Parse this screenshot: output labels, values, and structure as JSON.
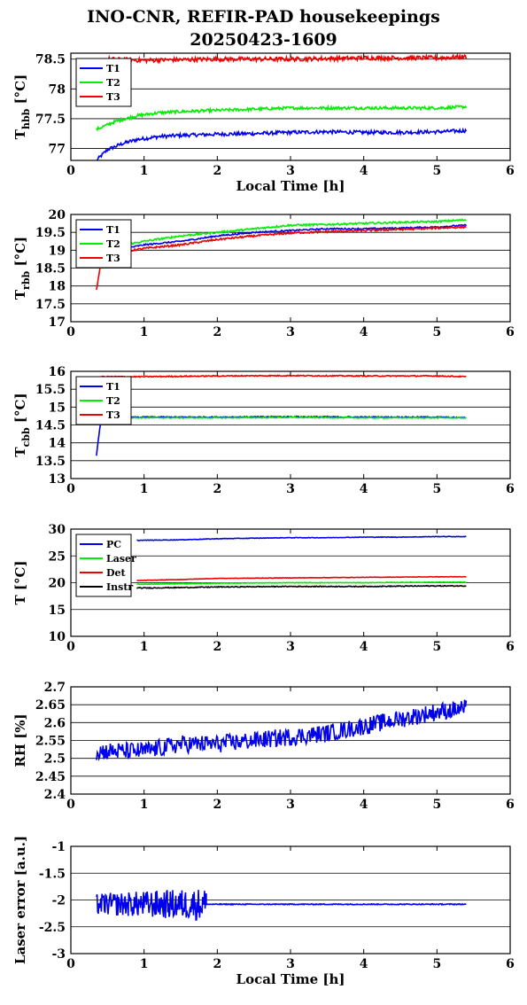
{
  "title": {
    "line1": "INO-CNR, REFIR-PAD housekeepings",
    "line2": "20250423-1609"
  },
  "colors": {
    "blue": "#0000ee",
    "green": "#00ee00",
    "red": "#ee0000",
    "black": "#000000"
  },
  "chart_data": [
    {
      "type": "line",
      "ylabel_main": "T",
      "ylabel_sub": "hbb",
      "ylabel_unit": "[°C]",
      "xlabel": "Local Time [h]",
      "xlim": [
        0,
        6
      ],
      "ylim": [
        76.8,
        78.6
      ],
      "xticks": [
        "0",
        "1",
        "2",
        "3",
        "4",
        "5",
        "6"
      ],
      "yticks": [
        {
          "v": 77,
          "label": "77"
        },
        {
          "v": 77.5,
          "label": "77.5"
        },
        {
          "v": 78,
          "label": "78"
        },
        {
          "v": 78.5,
          "label": "78.5"
        }
      ],
      "grid_y": [
        77,
        77.5,
        78,
        78.5
      ],
      "legend": "top-left",
      "series": [
        {
          "name": "T1",
          "color": "#0000ee",
          "points": [
            [
              0.35,
              76.8
            ],
            [
              0.5,
              76.98
            ],
            [
              0.7,
              77.08
            ],
            [
              0.9,
              77.15
            ],
            [
              1.2,
              77.2
            ],
            [
              1.5,
              77.22
            ],
            [
              2.0,
              77.24
            ],
            [
              2.5,
              77.25
            ],
            [
              3.0,
              77.27
            ],
            [
              3.5,
              77.28
            ],
            [
              4.0,
              77.27
            ],
            [
              4.5,
              77.27
            ],
            [
              5.0,
              77.28
            ],
            [
              5.4,
              77.3
            ]
          ],
          "noise": 0.03
        },
        {
          "name": "T2",
          "color": "#00ee00",
          "points": [
            [
              0.35,
              77.32
            ],
            [
              0.6,
              77.45
            ],
            [
              0.9,
              77.55
            ],
            [
              1.2,
              77.6
            ],
            [
              1.5,
              77.62
            ],
            [
              2.0,
              77.64
            ],
            [
              2.5,
              77.66
            ],
            [
              3.0,
              77.68
            ],
            [
              3.5,
              77.68
            ],
            [
              4.0,
              77.68
            ],
            [
              4.5,
              77.68
            ],
            [
              5.0,
              77.68
            ],
            [
              5.4,
              77.7
            ]
          ],
          "noise": 0.025
        },
        {
          "name": "T3",
          "color": "#ee0000",
          "points": [
            [
              0.5,
              78.5
            ],
            [
              1.0,
              78.48
            ],
            [
              2.0,
              78.5
            ],
            [
              3.0,
              78.5
            ],
            [
              4.0,
              78.52
            ],
            [
              5.0,
              78.52
            ],
            [
              5.4,
              78.54
            ]
          ],
          "noise": 0.035
        }
      ]
    },
    {
      "type": "line",
      "ylabel_main": "T",
      "ylabel_sub": "rbb",
      "ylabel_unit": "[°C]",
      "xlabel": "",
      "xlim": [
        0,
        6
      ],
      "ylim": [
        17,
        20
      ],
      "xticks": [
        "0",
        "1",
        "2",
        "3",
        "4",
        "5",
        "6"
      ],
      "yticks": [
        {
          "v": 17,
          "label": "17"
        },
        {
          "v": 17.5,
          "label": "17.5"
        },
        {
          "v": 18,
          "label": "18"
        },
        {
          "v": 18.5,
          "label": "18.5"
        },
        {
          "v": 19,
          "label": "19"
        },
        {
          "v": 19.5,
          "label": "19.5"
        },
        {
          "v": 20,
          "label": "20"
        }
      ],
      "grid_y": [
        17,
        17.5,
        18,
        18.5,
        19,
        19.5
      ],
      "legend": "top-left",
      "series": [
        {
          "name": "T1",
          "color": "#0000ee",
          "points": [
            [
              0.4,
              18.85
            ],
            [
              0.6,
              19.0
            ],
            [
              1.0,
              19.15
            ],
            [
              1.5,
              19.25
            ],
            [
              2.0,
              19.4
            ],
            [
              2.5,
              19.5
            ],
            [
              3.0,
              19.55
            ],
            [
              3.5,
              19.6
            ],
            [
              4.0,
              19.6
            ],
            [
              4.5,
              19.62
            ],
            [
              5.0,
              19.65
            ],
            [
              5.4,
              19.7
            ]
          ],
          "noise": 0.02
        },
        {
          "name": "T2",
          "color": "#00ee00",
          "points": [
            [
              0.6,
              19.1
            ],
            [
              1.0,
              19.25
            ],
            [
              1.5,
              19.4
            ],
            [
              2.0,
              19.5
            ],
            [
              2.5,
              19.6
            ],
            [
              3.0,
              19.7
            ],
            [
              3.5,
              19.72
            ],
            [
              4.0,
              19.75
            ],
            [
              4.5,
              19.78
            ],
            [
              5.0,
              19.8
            ],
            [
              5.4,
              19.85
            ]
          ],
          "noise": 0.025
        },
        {
          "name": "T3",
          "color": "#ee0000",
          "points": [
            [
              0.35,
              17.9
            ],
            [
              0.38,
              18.3
            ],
            [
              0.42,
              18.7
            ],
            [
              0.5,
              18.85
            ],
            [
              0.7,
              18.95
            ],
            [
              1.0,
              19.05
            ],
            [
              1.5,
              19.15
            ],
            [
              2.0,
              19.3
            ],
            [
              2.5,
              19.4
            ],
            [
              3.0,
              19.48
            ],
            [
              3.5,
              19.52
            ],
            [
              4.0,
              19.55
            ],
            [
              4.5,
              19.58
            ],
            [
              5.0,
              19.62
            ],
            [
              5.4,
              19.65
            ]
          ],
          "noise": 0.025
        }
      ]
    },
    {
      "type": "line",
      "ylabel_main": "T",
      "ylabel_sub": "cbb",
      "ylabel_unit": "[°C]",
      "xlabel": "",
      "xlim": [
        0,
        6
      ],
      "ylim": [
        13,
        16
      ],
      "xticks": [
        "0",
        "1",
        "2",
        "3",
        "4",
        "5",
        "6"
      ],
      "yticks": [
        {
          "v": 13,
          "label": "13"
        },
        {
          "v": 13.5,
          "label": "13.5"
        },
        {
          "v": 14,
          "label": "14"
        },
        {
          "v": 14.5,
          "label": "14.5"
        },
        {
          "v": 15,
          "label": "15"
        },
        {
          "v": 15.5,
          "label": "15.5"
        },
        {
          "v": 16,
          "label": "16"
        }
      ],
      "grid_y": [
        13,
        13.5,
        14,
        14.5,
        15,
        15.5
      ],
      "legend": "top-left",
      "series": [
        {
          "name": "T1",
          "color": "#0000ee",
          "points": [
            [
              0.35,
              13.65
            ],
            [
              0.37,
              14.0
            ],
            [
              0.4,
              14.5
            ],
            [
              0.45,
              14.7
            ],
            [
              1.0,
              14.72
            ],
            [
              2.0,
              14.72
            ],
            [
              3.0,
              14.73
            ],
            [
              4.0,
              14.72
            ],
            [
              5.0,
              14.72
            ],
            [
              5.4,
              14.7
            ]
          ],
          "noise": 0.015
        },
        {
          "name": "T2",
          "color": "#00ee00",
          "points": [
            [
              0.4,
              14.7
            ],
            [
              1.0,
              14.7
            ],
            [
              2.0,
              14.7
            ],
            [
              3.0,
              14.71
            ],
            [
              4.0,
              14.7
            ],
            [
              5.0,
              14.7
            ],
            [
              5.4,
              14.7
            ]
          ],
          "noise": 0.015
        },
        {
          "name": "T3",
          "color": "#ee0000",
          "points": [
            [
              0.4,
              15.85
            ],
            [
              1.0,
              15.85
            ],
            [
              2.0,
              15.87
            ],
            [
              3.0,
              15.88
            ],
            [
              4.0,
              15.87
            ],
            [
              5.0,
              15.87
            ],
            [
              5.4,
              15.85
            ]
          ],
          "noise": 0.015
        }
      ]
    },
    {
      "type": "line",
      "ylabel_main": "T [°C]",
      "ylabel_sub": "",
      "ylabel_unit": "",
      "xlabel": "",
      "xlim": [
        0,
        6
      ],
      "ylim": [
        10,
        30
      ],
      "xticks": [
        "0",
        "1",
        "2",
        "3",
        "4",
        "5",
        "6"
      ],
      "yticks": [
        {
          "v": 10,
          "label": "10"
        },
        {
          "v": 15,
          "label": "15"
        },
        {
          "v": 20,
          "label": "20"
        },
        {
          "v": 25,
          "label": "25"
        },
        {
          "v": 30,
          "label": "30"
        }
      ],
      "grid_y": [
        10,
        15,
        20,
        25
      ],
      "legend": "top-left",
      "series": [
        {
          "name": "PC",
          "color": "#0000ee",
          "points": [
            [
              0.9,
              27.9
            ],
            [
              1.5,
              28.0
            ],
            [
              2.0,
              28.2
            ],
            [
              2.5,
              28.3
            ],
            [
              3.0,
              28.4
            ],
            [
              3.5,
              28.4
            ],
            [
              4.0,
              28.5
            ],
            [
              4.5,
              28.5
            ],
            [
              5.0,
              28.6
            ],
            [
              5.4,
              28.6
            ]
          ],
          "noise": 0.05
        },
        {
          "name": "Laser",
          "color": "#00ee00",
          "points": [
            [
              0.9,
              19.7
            ],
            [
              2.0,
              19.9
            ],
            [
              3.0,
              20.0
            ],
            [
              4.0,
              20.0
            ],
            [
              5.0,
              20.1
            ],
            [
              5.4,
              20.1
            ]
          ],
          "noise": 0.05
        },
        {
          "name": "Det",
          "color": "#ee0000",
          "points": [
            [
              0.9,
              20.4
            ],
            [
              1.5,
              20.6
            ],
            [
              2.0,
              20.8
            ],
            [
              3.0,
              20.9
            ],
            [
              4.0,
              21.0
            ],
            [
              5.0,
              21.1
            ],
            [
              5.4,
              21.1
            ]
          ],
          "noise": 0.04
        },
        {
          "name": "Instr",
          "color": "#000000",
          "points": [
            [
              0.9,
              19.0
            ],
            [
              1.5,
              19.1
            ],
            [
              2.0,
              19.2
            ],
            [
              3.0,
              19.3
            ],
            [
              4.0,
              19.3
            ],
            [
              5.0,
              19.4
            ],
            [
              5.4,
              19.4
            ]
          ],
          "noise": 0.08
        }
      ]
    },
    {
      "type": "line",
      "ylabel_main": "RH [%]",
      "ylabel_sub": "",
      "ylabel_unit": "",
      "xlabel": "",
      "xlim": [
        0,
        6
      ],
      "ylim": [
        2.4,
        2.7
      ],
      "xticks": [
        "0",
        "1",
        "2",
        "3",
        "4",
        "5",
        "6"
      ],
      "yticks": [
        {
          "v": 2.4,
          "label": "2.4"
        },
        {
          "v": 2.45,
          "label": "2.45"
        },
        {
          "v": 2.5,
          "label": "2.5"
        },
        {
          "v": 2.55,
          "label": "2.55"
        },
        {
          "v": 2.6,
          "label": "2.6"
        },
        {
          "v": 2.65,
          "label": "2.65"
        },
        {
          "v": 2.7,
          "label": "2.7"
        }
      ],
      "grid_y": [
        2.4,
        2.45,
        2.5,
        2.55,
        2.6,
        2.65
      ],
      "legend": "none",
      "series": [
        {
          "name": "",
          "color": "#0000ee",
          "points": [
            [
              0.35,
              2.52
            ],
            [
              1.0,
              2.52
            ],
            [
              1.5,
              2.54
            ],
            [
              2.0,
              2.54
            ],
            [
              2.5,
              2.55
            ],
            [
              3.0,
              2.56
            ],
            [
              3.5,
              2.57
            ],
            [
              4.0,
              2.59
            ],
            [
              4.5,
              2.61
            ],
            [
              5.0,
              2.63
            ],
            [
              5.4,
              2.64
            ]
          ],
          "noise": 0.025
        }
      ]
    },
    {
      "type": "line",
      "ylabel_main": "Laser error [a.u.]",
      "ylabel_sub": "",
      "ylabel_unit": "",
      "xlabel": "Local Time [h]",
      "xlim": [
        0,
        6
      ],
      "ylim": [
        -3,
        -1
      ],
      "xticks": [
        "0",
        "1",
        "2",
        "3",
        "4",
        "5",
        "6"
      ],
      "yticks": [
        {
          "v": -3,
          "label": "-3"
        },
        {
          "v": -2.5,
          "label": "-2.5"
        },
        {
          "v": -2,
          "label": "-2"
        },
        {
          "v": -1.5,
          "label": "-1.5"
        },
        {
          "v": -1,
          "label": "-1"
        }
      ],
      "grid_y": [
        -3,
        -2.5,
        -2,
        -1.5
      ],
      "legend": "none",
      "series": [
        {
          "name": "",
          "color": "#0000ee",
          "segments": [
            {
              "from": 0.35,
              "to": 1.85,
              "base": -2.08,
              "noise": 0.2,
              "growth": 0.12
            },
            {
              "from": 1.85,
              "to": 5.4,
              "base": -2.08,
              "noise": 0.008,
              "growth": 0
            }
          ]
        }
      ]
    }
  ]
}
